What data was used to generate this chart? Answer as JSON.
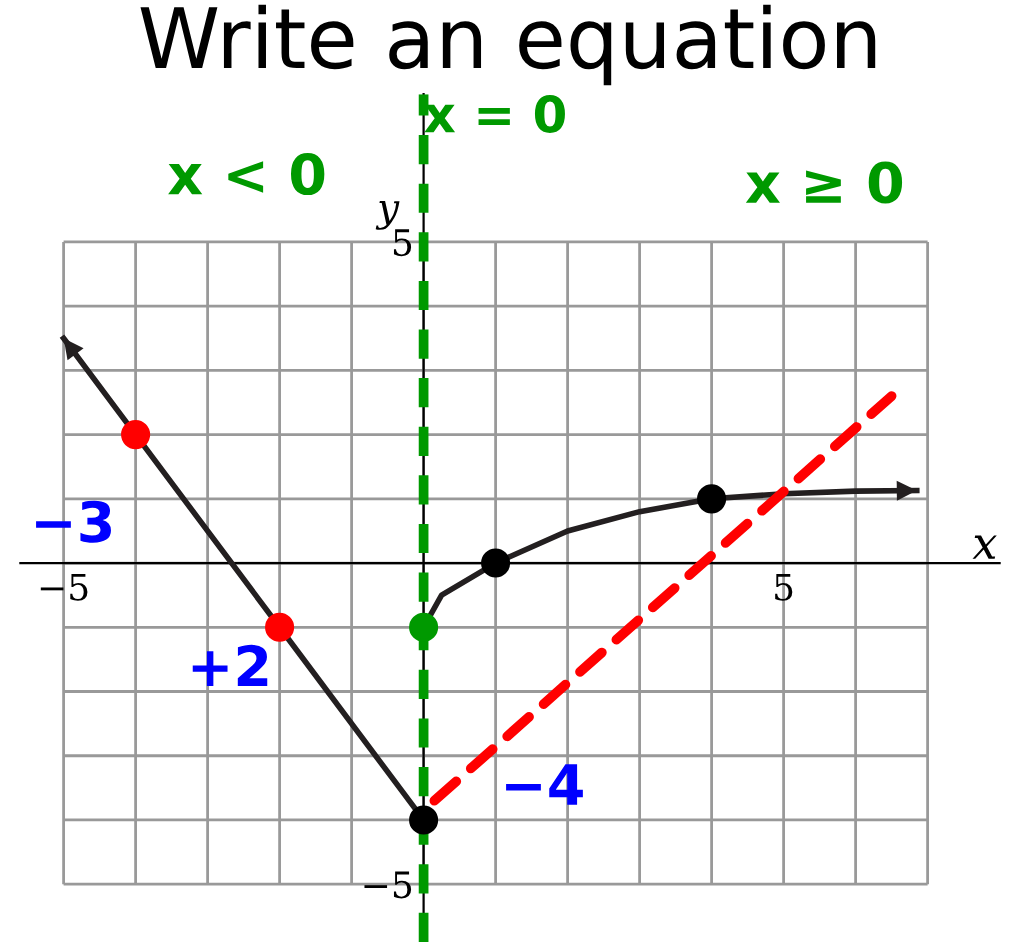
{
  "chart_data": {
    "type": "line",
    "title": "Write an equation",
    "xlabel": "x",
    "ylabel": "y",
    "xlim": [
      -5.6,
      8
    ],
    "ylim": [
      -5.9,
      7.3
    ],
    "xticks": [
      {
        "value": -5,
        "label": "−5"
      },
      {
        "value": -4,
        "label": null
      },
      {
        "value": -3,
        "label": null
      },
      {
        "value": -2,
        "label": null
      },
      {
        "value": -1,
        "label": null
      },
      {
        "value": 0,
        "label": null
      },
      {
        "value": 1,
        "label": null
      },
      {
        "value": 2,
        "label": null
      },
      {
        "value": 3,
        "label": null
      },
      {
        "value": 4,
        "label": null
      },
      5,
      {
        "value": 6,
        "label": null
      },
      {
        "value": 7,
        "label": null
      }
    ],
    "yticks": [
      {
        "value": -5,
        "label": "−5"
      },
      {
        "value": -4,
        "label": null
      },
      {
        "value": -3,
        "label": null
      },
      {
        "value": -2,
        "label": null
      },
      {
        "value": -1,
        "label": null
      },
      {
        "value": 0,
        "label": null
      },
      {
        "value": 1,
        "label": null
      },
      {
        "value": 2,
        "label": null
      },
      {
        "value": 3,
        "label": null
      },
      {
        "value": 4,
        "label": null
      },
      5
    ],
    "grid": true,
    "series": [
      {
        "color": "#231f20",
        "x": [
          -5,
          -4,
          -2,
          0
        ],
        "values": [
          3.5,
          2,
          -1,
          -4
        ]
      },
      {
        "color": "#231f20",
        "x": [
          0,
          0.25,
          1,
          2,
          3,
          4,
          5,
          6,
          6.85
        ],
        "values": [
          -1,
          -0.5,
          0,
          0.5,
          0.8,
          1,
          1.08,
          1.12,
          1.13
        ]
      },
      {
        "color": "#ff0000",
        "line_style": "dashed",
        "x": [
          0.15,
          6.5
        ],
        "values": [
          -3.7,
          2.6
        ]
      },
      {
        "type": "scatter",
        "color": "#ff0000",
        "marker": "circle",
        "x": [
          -4,
          -2
        ],
        "values": [
          2,
          -1
        ]
      },
      {
        "type": "scatter",
        "color": "#000000",
        "marker": "circle",
        "x": [
          1,
          4,
          0
        ],
        "values": [
          0,
          1,
          -4
        ]
      },
      {
        "type": "scatter",
        "color": "#009900",
        "marker": "circle",
        "x": [
          0
        ],
        "values": [
          -1
        ]
      }
    ],
    "ref_lines": [
      {
        "axis": "x",
        "value": 0,
        "label": "x = 0",
        "color": "#009900",
        "line_style": "dashed"
      }
    ],
    "annotations": [
      "x < 0",
      "x ≥ 0",
      "−3",
      "+2",
      "−4"
    ]
  }
}
